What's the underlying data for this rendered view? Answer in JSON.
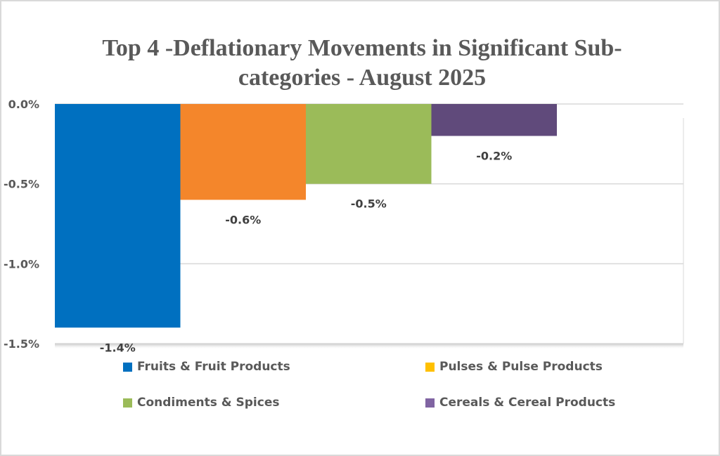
{
  "chart_data": {
    "type": "bar",
    "title": "Top  4 -Deflationary Movements in Significant Sub-categories - August 2025",
    "title_lines": [
      "Top  4 -Deflationary Movements in Significant Sub-",
      "categories - August 2025"
    ],
    "xlabel": "",
    "ylabel": "",
    "ylim": [
      -1.5,
      0.0
    ],
    "yticks": [
      0.0,
      -0.5,
      -1.0,
      -1.5
    ],
    "ytick_labels": [
      "0.0%",
      "-0.5%",
      "-1.0%",
      "-1.5%"
    ],
    "grid": true,
    "legend_position": "bottom",
    "series": [
      {
        "name": "Fruits & Fruit Products",
        "value": -1.4,
        "label": "-1.4%",
        "color": "#0070C0",
        "legend_color": "#0070C0"
      },
      {
        "name": "Pulses & Pulse Products",
        "value": -0.6,
        "label": "-0.6%",
        "color": "#F4862B",
        "legend_color": "#FFC000"
      },
      {
        "name": "Condiments & Spices",
        "value": -0.5,
        "label": "-0.5%",
        "color": "#9BBB59",
        "legend_color": "#9BBB59"
      },
      {
        "name": "Cereals & Cereal Products",
        "value": -0.2,
        "label": "-0.2%",
        "color": "#604A7B",
        "legend_color": "#8064A2"
      }
    ]
  }
}
